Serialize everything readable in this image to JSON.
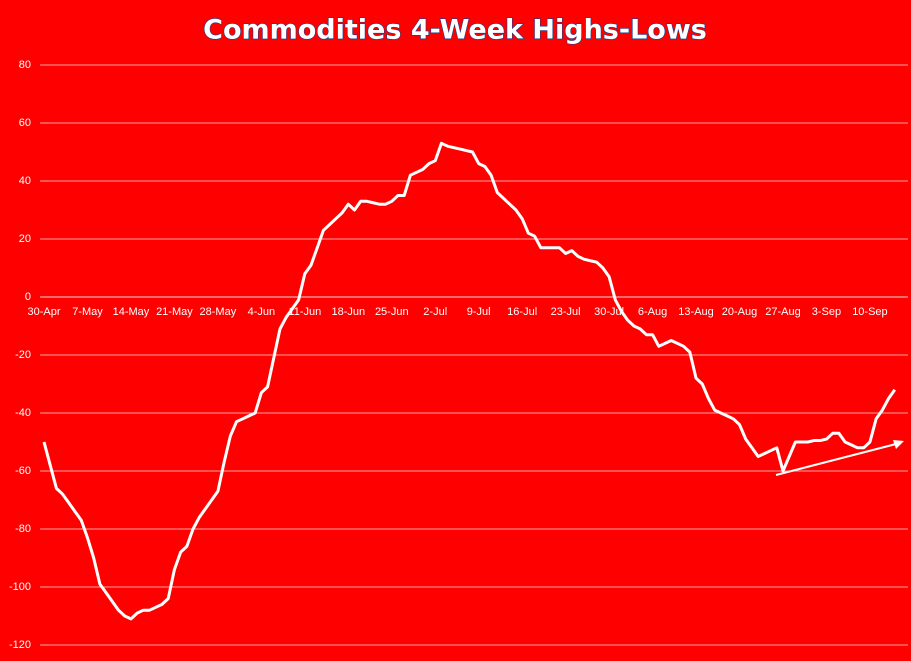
{
  "chart_data": {
    "type": "line",
    "title": "Commodities 4-Week Highs-Lows",
    "categories": [
      "30-Apr",
      null,
      null,
      null,
      null,
      null,
      null,
      "7-May",
      null,
      null,
      null,
      null,
      null,
      null,
      "14-May",
      null,
      null,
      null,
      null,
      null,
      null,
      "21-May",
      null,
      null,
      null,
      null,
      null,
      null,
      "28-May",
      null,
      null,
      null,
      null,
      null,
      null,
      "4-Jun",
      null,
      null,
      null,
      null,
      null,
      null,
      "11-Jun",
      null,
      null,
      null,
      null,
      null,
      null,
      "18-Jun",
      null,
      null,
      null,
      null,
      null,
      null,
      "25-Jun",
      null,
      null,
      null,
      null,
      null,
      null,
      "2-Jul",
      null,
      null,
      null,
      null,
      null,
      null,
      "9-Jul",
      null,
      null,
      null,
      null,
      null,
      null,
      "16-Jul",
      null,
      null,
      null,
      null,
      null,
      null,
      "23-Jul",
      null,
      null,
      null,
      null,
      null,
      null,
      "30-Jul",
      null,
      null,
      null,
      null,
      null,
      null,
      "6-Aug",
      null,
      null,
      null,
      null,
      null,
      null,
      "13-Aug",
      null,
      null,
      null,
      null,
      null,
      null,
      "20-Aug",
      null,
      null,
      null,
      null,
      null,
      null,
      "27-Aug",
      null,
      null,
      null,
      null,
      null,
      null,
      "3-Sep",
      null,
      null,
      null,
      null,
      null,
      null,
      "10-Sep",
      null,
      null,
      null,
      null
    ],
    "values": [
      -50,
      -58,
      -66,
      -68,
      -71,
      -74,
      -77,
      -83,
      -90,
      -99,
      -102,
      -105,
      -108,
      -110,
      -111,
      -109,
      -108,
      -108,
      -107,
      -106,
      -104,
      -94,
      -88,
      -86,
      -80,
      -76,
      -73,
      -70,
      -67,
      -57,
      -48,
      -43,
      -42,
      -41,
      -40,
      -33,
      -31,
      -21,
      -11,
      -7,
      -4,
      -1,
      8,
      11,
      17,
      23,
      25,
      27,
      29,
      32,
      30,
      33,
      33,
      32.5,
      32,
      32,
      33,
      35,
      35,
      42,
      43,
      44,
      46,
      47,
      53,
      52,
      51.5,
      51,
      50.5,
      50,
      46,
      45,
      42,
      36,
      34,
      32,
      30,
      27,
      22,
      21,
      17,
      17,
      17,
      17,
      15,
      16,
      14,
      13,
      12.5,
      12,
      10,
      7,
      -1,
      -5,
      -8,
      -10,
      -11,
      -13,
      -13,
      -17,
      -16,
      -15,
      -16,
      -17,
      -19,
      -28,
      -30,
      -35,
      -39,
      -40,
      -41,
      -42,
      -44,
      -49,
      -52,
      -55,
      -54,
      -53,
      -52,
      -60,
      -55,
      -50,
      -50,
      -50,
      -49.5,
      -49.5,
      -49,
      -47,
      -47,
      -50,
      -51,
      -52,
      -52,
      -50,
      -42,
      -39,
      -35,
      -32
    ],
    "color": "#ffffff",
    "ylim": [
      -120,
      80
    ],
    "yticks": [
      -120,
      -100,
      -80,
      -60,
      -40,
      -20,
      0,
      20,
      40,
      60,
      80
    ],
    "grid": true
  }
}
